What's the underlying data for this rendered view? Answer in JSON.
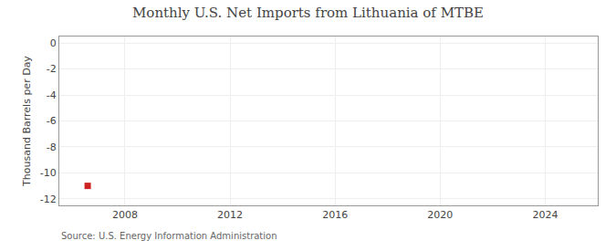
{
  "chart_data": {
    "type": "scatter",
    "title": "Monthly U.S. Net Imports from Lithuania of MTBE",
    "ylabel": "Thousand Barrels per Day",
    "annotations": [
      "Source: U.S. Energy Information Administration"
    ],
    "x": [
      2006.58
    ],
    "values": [
      -11.0
    ],
    "color": "#cc2222",
    "marker": "square",
    "xlim": [
      2005.5,
      2026.0
    ],
    "xticks": [
      2008,
      2012,
      2016,
      2020,
      2024
    ],
    "ylim": [
      -12.5,
      0.5
    ],
    "yticks": [
      0,
      -2,
      -4,
      -6,
      -8,
      -10,
      -12
    ],
    "grid": true
  }
}
